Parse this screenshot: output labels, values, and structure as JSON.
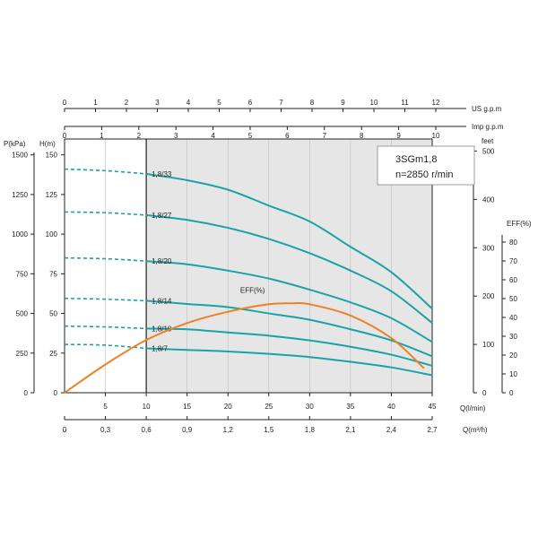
{
  "chart_data": {
    "type": "line",
    "model": "3SGm1,8",
    "speed": "n=2850 r/min",
    "colors": {
      "head": "#1aa3a6",
      "efficiency": "#ee8122",
      "shaded": "#e6e6e6",
      "axis": "#222222",
      "grid": "#bdbdbd"
    },
    "axes": {
      "q_lmin": {
        "label": "Q(l/min)",
        "range": [
          0,
          45
        ],
        "ticks": [
          "5",
          "10",
          "15",
          "20",
          "25",
          "30",
          "35",
          "40",
          "45"
        ]
      },
      "q_m3h": {
        "label": "Q(m³/h)",
        "range": [
          0,
          2.7
        ],
        "ticks": [
          "0",
          "0,3",
          "0,6",
          "0,9",
          "1,2",
          "1,5",
          "1,8",
          "2,1",
          "2,4",
          "2,7"
        ]
      },
      "us_gpm": {
        "label": "US  g.p.m",
        "range": [
          0,
          12
        ],
        "ticks": [
          "0",
          "1",
          "2",
          "3",
          "4",
          "5",
          "6",
          "7",
          "8",
          "9",
          "10",
          "11",
          "12"
        ]
      },
      "imp_gpm": {
        "label": "Imp  g.p.m",
        "range": [
          0,
          10
        ],
        "ticks": [
          "0",
          "1",
          "2",
          "3",
          "4",
          "5",
          "6",
          "7",
          "8",
          "9",
          "10"
        ]
      },
      "head_m": {
        "label": "H(m)",
        "range": [
          0,
          160
        ],
        "ticks": [
          "0",
          "25",
          "50",
          "75",
          "100",
          "125",
          "150"
        ]
      },
      "pressure_kpa": {
        "label": "P(kPa)",
        "range": [
          0,
          1600
        ],
        "ticks": [
          "0",
          "250",
          "500",
          "750",
          "1000",
          "1250",
          "1500"
        ]
      },
      "head_feet": {
        "label": "feet",
        "range": [
          0,
          500
        ],
        "ticks": [
          "0",
          "100",
          "200",
          "300",
          "400",
          "500"
        ]
      },
      "eff": {
        "label": "EFF(%)",
        "range": [
          0,
          80
        ],
        "ticks": [
          "0",
          "10",
          "20",
          "30",
          "40",
          "50",
          "60",
          "70",
          "80"
        ]
      }
    },
    "recommended_range_lmin": [
      10,
      45
    ],
    "series": [
      {
        "name": "1,8/33",
        "x": [
          10,
          15,
          20,
          25,
          30,
          35,
          40,
          45
        ],
        "y": [
          138,
          134,
          128,
          118,
          108,
          92,
          76,
          53
        ],
        "low_flow": {
          "x": [
            0,
            5,
            10
          ],
          "y": [
            141,
            140,
            138
          ]
        }
      },
      {
        "name": "1,8/27",
        "x": [
          10,
          15,
          20,
          25,
          30,
          35,
          40,
          45
        ],
        "y": [
          112,
          109,
          104,
          97,
          88,
          77,
          64,
          44
        ],
        "low_flow": {
          "x": [
            0,
            5,
            10
          ],
          "y": [
            114,
            113.5,
            112
          ]
        }
      },
      {
        "name": "1,8/20",
        "x": [
          10,
          15,
          20,
          25,
          30,
          35,
          40,
          45
        ],
        "y": [
          83,
          81,
          77,
          72,
          65,
          57,
          47,
          32
        ],
        "low_flow": {
          "x": [
            0,
            5,
            10
          ],
          "y": [
            85,
            84.5,
            83
          ]
        }
      },
      {
        "name": "1,8/14",
        "x": [
          10,
          15,
          20,
          25,
          30,
          35,
          40,
          45
        ],
        "y": [
          58,
          56,
          54,
          50,
          46,
          40,
          33,
          23
        ],
        "low_flow": {
          "x": [
            0,
            5,
            10
          ],
          "y": [
            59.5,
            59,
            58
          ]
        }
      },
      {
        "name": "1,8/10",
        "x": [
          10,
          15,
          20,
          25,
          30,
          35,
          40,
          45
        ],
        "y": [
          40.5,
          40,
          38,
          36,
          33,
          29,
          24,
          17
        ],
        "low_flow": {
          "x": [
            0,
            5,
            10
          ],
          "y": [
            42,
            41.5,
            40.5
          ]
        }
      },
      {
        "name": "1,8/7",
        "x": [
          10,
          15,
          20,
          25,
          30,
          35,
          40,
          45
        ],
        "y": [
          28,
          27,
          26,
          24.5,
          22.5,
          19.5,
          16,
          11
        ],
        "low_flow": {
          "x": [
            0,
            5,
            10
          ],
          "y": [
            30.5,
            30,
            28
          ]
        }
      }
    ],
    "efficiency": {
      "name": "EFF(%)",
      "x": [
        0,
        5,
        10,
        15,
        20,
        25,
        28,
        30,
        35,
        40,
        44
      ],
      "y": [
        0,
        15,
        28,
        37,
        43,
        47,
        47.5,
        47,
        41,
        29,
        13
      ]
    }
  }
}
